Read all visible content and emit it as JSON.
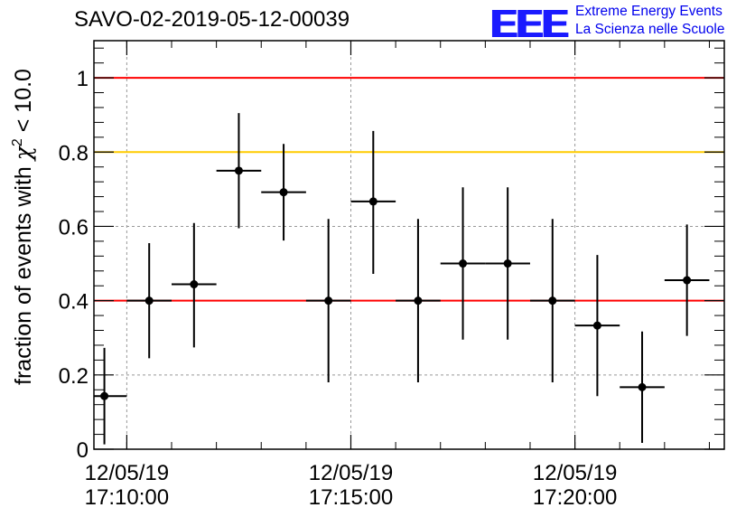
{
  "header": {
    "title": "SAVO-02-2019-05-12-00039",
    "logo_mark": "EEE",
    "logo_line1": "Extreme Energy Events",
    "logo_line2": "La Scienza nelle Scuole"
  },
  "chart_data": {
    "type": "scatter",
    "title": "SAVO-02-2019-05-12-00039",
    "ylabel_main": "fraction of events with ",
    "ylabel_symbol": "χ",
    "ylabel_sup": "2",
    "ylabel_tail": " < 10.0",
    "ylim": [
      0,
      1.1
    ],
    "xlim": [
      "17:09:16",
      "17:23:20"
    ],
    "y_ticks": [
      0,
      0.2,
      0.4,
      0.6,
      0.8,
      1
    ],
    "y_tick_labels": [
      "0",
      "0.2",
      "0.4",
      "0.6",
      "0.8",
      "1"
    ],
    "x_ticks": [
      {
        "time": "17:10:00",
        "line1": "12/05/19",
        "line2": "17:10:00"
      },
      {
        "time": "17:15:00",
        "line1": "12/05/19",
        "line2": "17:15:00"
      },
      {
        "time": "17:20:00",
        "line1": "12/05/19",
        "line2": "17:20:00"
      }
    ],
    "grid": true,
    "reference_lines": [
      {
        "y": 1.0,
        "color": "#ff0000"
      },
      {
        "y": 0.8,
        "color": "#ffcc00"
      },
      {
        "y": 0.4,
        "color": "#ff0000"
      }
    ],
    "bin_width_seconds": 60,
    "points": [
      {
        "x": "17:09:30",
        "y": 0.143,
        "err_lo": 0.13,
        "err_hi": 0.13
      },
      {
        "x": "17:10:30",
        "y": 0.4,
        "err_lo": 0.155,
        "err_hi": 0.155
      },
      {
        "x": "17:11:30",
        "y": 0.444,
        "err_lo": 0.17,
        "err_hi": 0.165
      },
      {
        "x": "17:12:30",
        "y": 0.75,
        "err_lo": 0.155,
        "err_hi": 0.155
      },
      {
        "x": "17:13:30",
        "y": 0.692,
        "err_lo": 0.13,
        "err_hi": 0.13
      },
      {
        "x": "17:14:30",
        "y": 0.4,
        "err_lo": 0.22,
        "err_hi": 0.22
      },
      {
        "x": "17:15:30",
        "y": 0.667,
        "err_lo": 0.195,
        "err_hi": 0.19
      },
      {
        "x": "17:16:30",
        "y": 0.4,
        "err_lo": 0.22,
        "err_hi": 0.22
      },
      {
        "x": "17:17:30",
        "y": 0.5,
        "err_lo": 0.205,
        "err_hi": 0.205
      },
      {
        "x": "17:18:30",
        "y": 0.5,
        "err_lo": 0.205,
        "err_hi": 0.205
      },
      {
        "x": "17:19:30",
        "y": 0.4,
        "err_lo": 0.22,
        "err_hi": 0.22
      },
      {
        "x": "17:20:30",
        "y": 0.333,
        "err_lo": 0.19,
        "err_hi": 0.19
      },
      {
        "x": "17:21:30",
        "y": 0.167,
        "err_lo": 0.15,
        "err_hi": 0.15
      },
      {
        "x": "17:22:30",
        "y": 0.455,
        "err_lo": 0.15,
        "err_hi": 0.15
      }
    ],
    "point_color": "#000000"
  }
}
